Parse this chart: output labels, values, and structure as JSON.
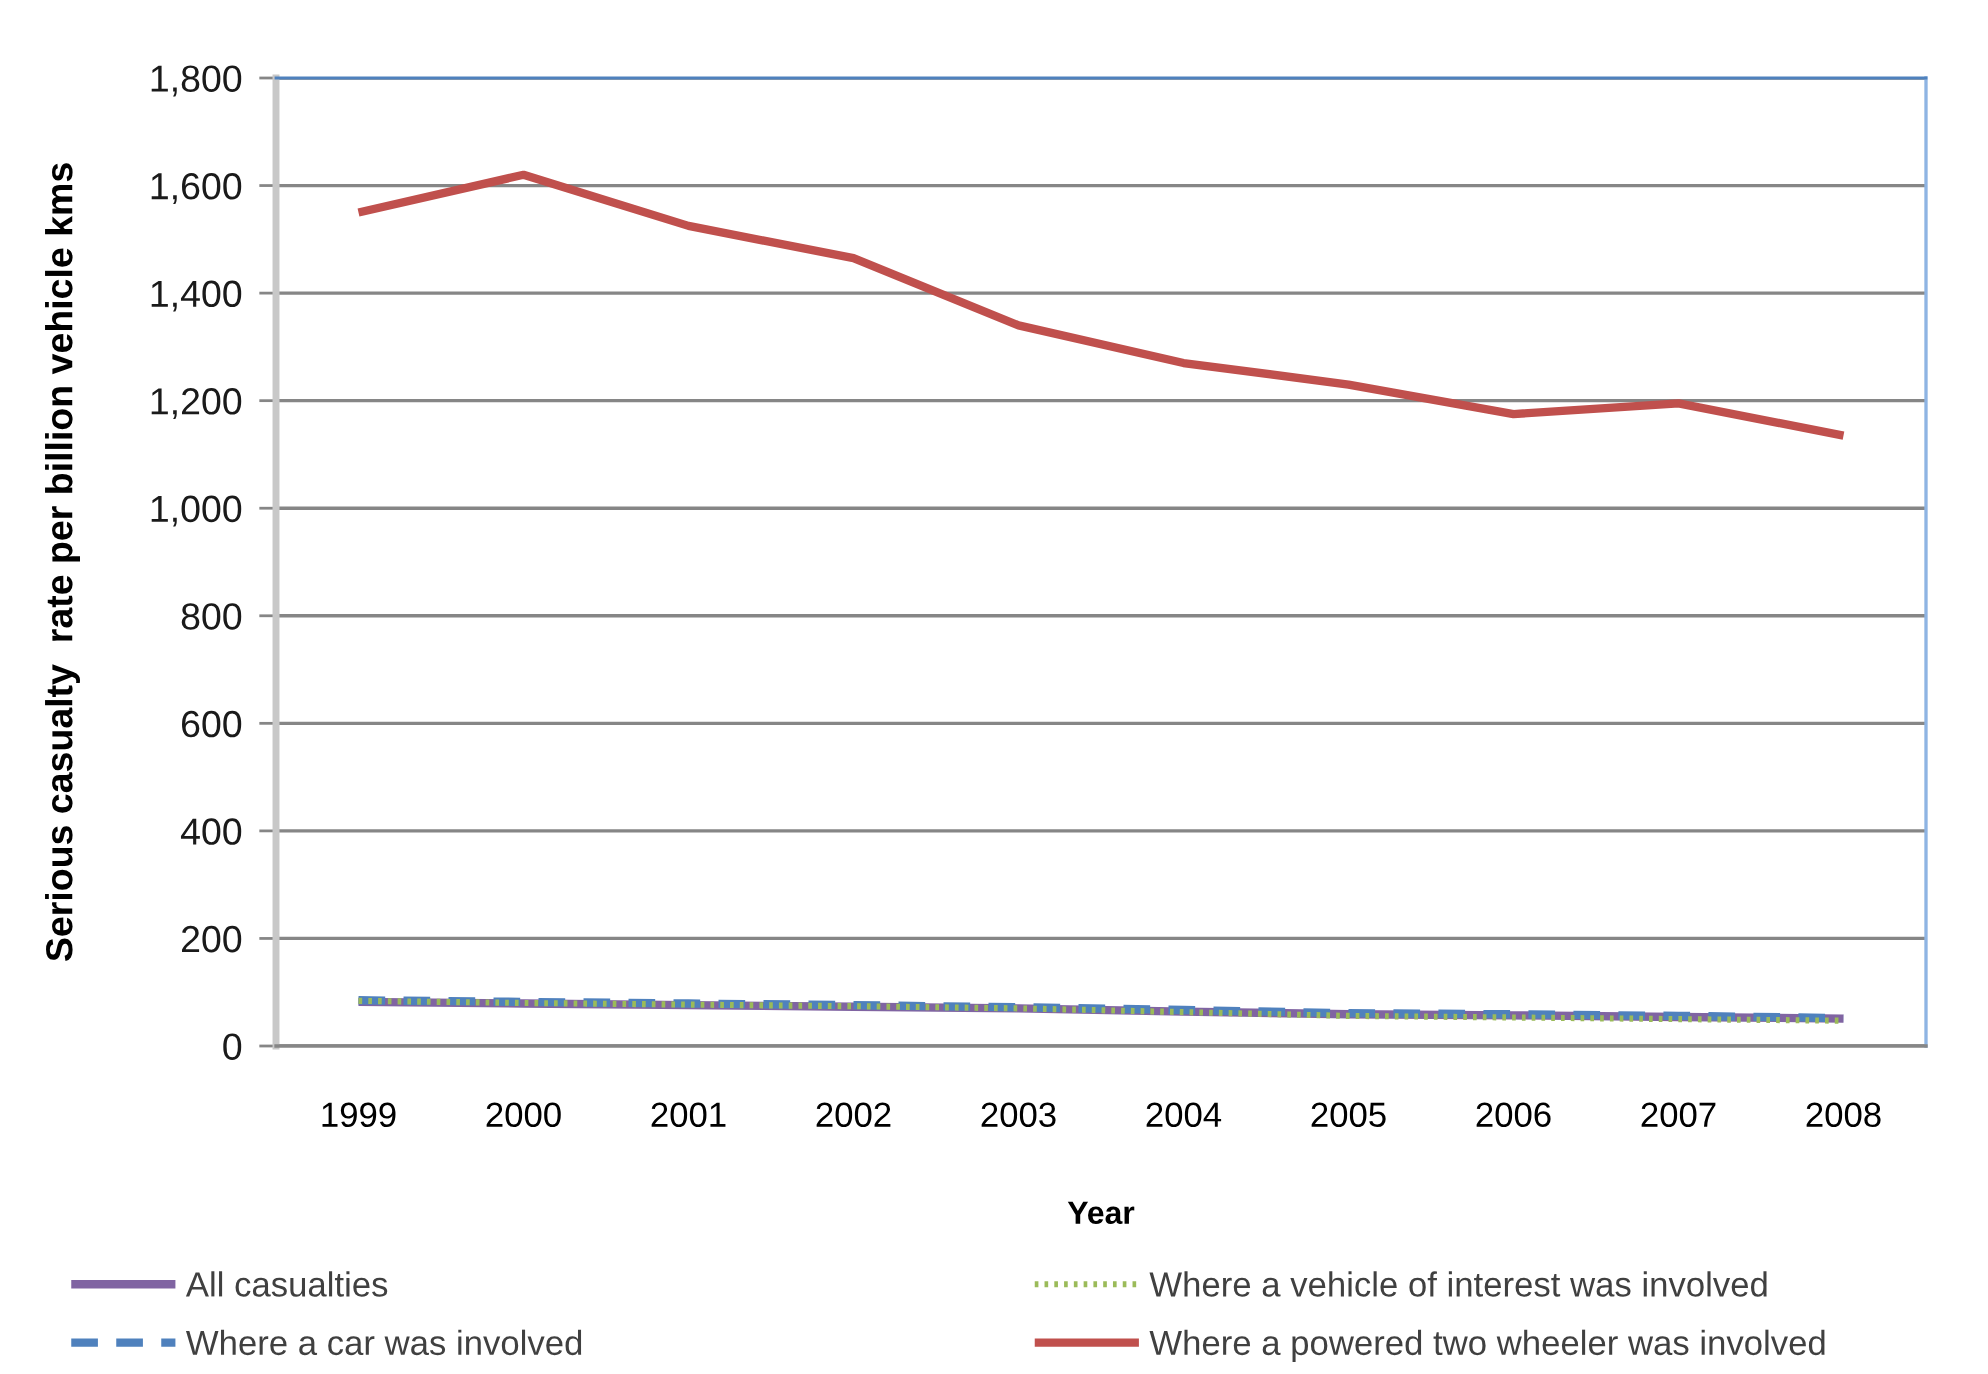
{
  "chart_data": {
    "type": "line",
    "xlabel": "Year",
    "ylabel": "Serious casualty  rate per billion vehicle kms",
    "categories": [
      "1999",
      "2000",
      "2001",
      "2002",
      "2003",
      "2004",
      "2005",
      "2006",
      "2007",
      "2008"
    ],
    "series": [
      {
        "name": "All casualties",
        "color": "#8064a2",
        "line_style": "solid",
        "values": [
          82,
          79,
          76,
          73,
          70,
          64,
          59,
          57,
          54,
          51
        ]
      },
      {
        "name": "Where a car was involved",
        "color": "#4f81bd",
        "line_style": "dashed",
        "values": [
          85,
          82,
          79,
          76,
          72,
          67,
          61,
          59,
          56,
          52
        ]
      },
      {
        "name": "Where a vehicle of interest was involved",
        "color": "#9bbb59",
        "line_style": "dotted",
        "values": [
          84,
          80,
          77,
          74,
          70,
          63,
          56,
          53,
          50,
          47
        ]
      },
      {
        "name": "Where a powered two wheeler was involved",
        "color": "#c0504d",
        "line_style": "solid",
        "values": [
          1550,
          1620,
          1525,
          1465,
          1340,
          1270,
          1230,
          1175,
          1195,
          1135
        ]
      }
    ],
    "ylim": [
      0,
      1800
    ],
    "yticks": [
      0,
      200,
      400,
      600,
      800,
      {
        "value": 1000,
        "label": "1,000"
      },
      {
        "value": 1200,
        "label": "1,200"
      },
      {
        "value": 1400,
        "label": "1,400"
      },
      {
        "value": 1600,
        "label": "1,600"
      },
      {
        "value": 1800,
        "label": "1,800"
      }
    ],
    "grid": "y",
    "legend": "bottom",
    "marker": "none"
  }
}
